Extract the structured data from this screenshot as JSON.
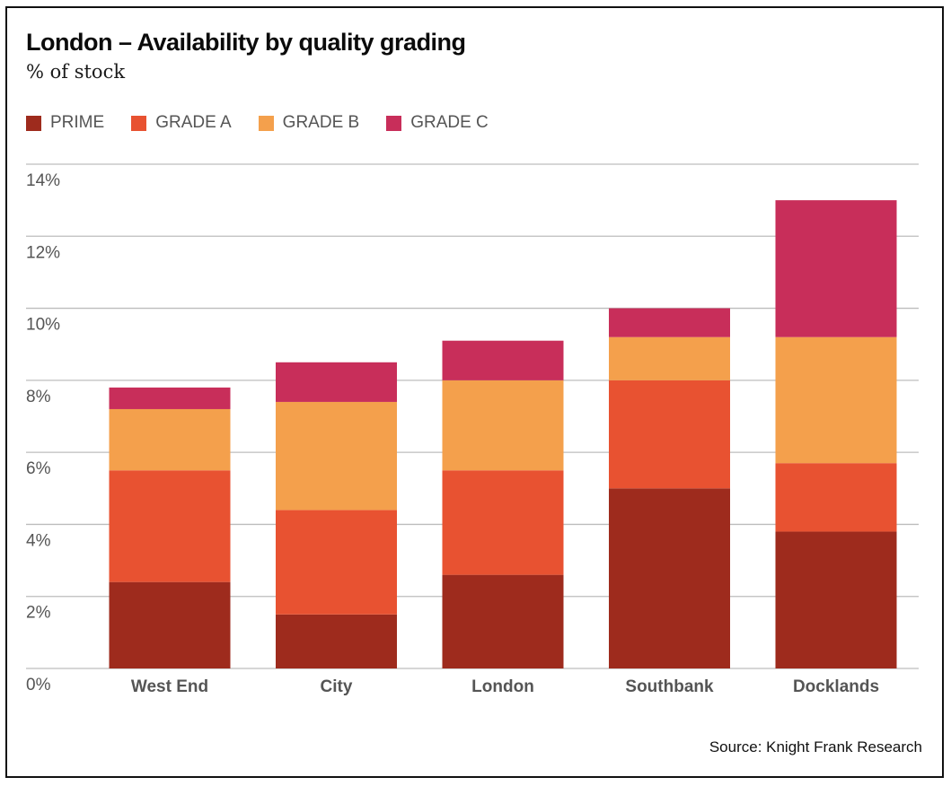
{
  "chart_data": {
    "type": "bar",
    "stacked": true,
    "title": "London – Availability by quality grading",
    "subtitle": "% of stock",
    "xlabel": "",
    "ylabel": "",
    "ylim": [
      0,
      14
    ],
    "yticks": [
      0,
      2,
      4,
      6,
      8,
      10,
      12,
      14
    ],
    "ytick_labels": [
      "0%",
      "2%",
      "4%",
      "6%",
      "8%",
      "10%",
      "12%",
      "14%"
    ],
    "grid": true,
    "legend_position": "top-left",
    "categories": [
      "West End",
      "City",
      "London",
      "Southbank",
      "Docklands"
    ],
    "series": [
      {
        "name": "PRIME",
        "color": "#9e2b1d",
        "values": [
          2.4,
          1.5,
          2.6,
          5.0,
          3.8
        ]
      },
      {
        "name": "GRADE A",
        "color": "#e85231",
        "values": [
          3.1,
          2.9,
          2.9,
          3.0,
          1.9
        ]
      },
      {
        "name": "GRADE B",
        "color": "#f4a04c",
        "values": [
          1.7,
          3.0,
          2.5,
          1.2,
          3.5
        ]
      },
      {
        "name": "GRADE C",
        "color": "#c82e5a",
        "values": [
          0.6,
          1.1,
          1.1,
          0.8,
          3.8
        ]
      }
    ],
    "source": "Source: Knight Frank Research"
  }
}
